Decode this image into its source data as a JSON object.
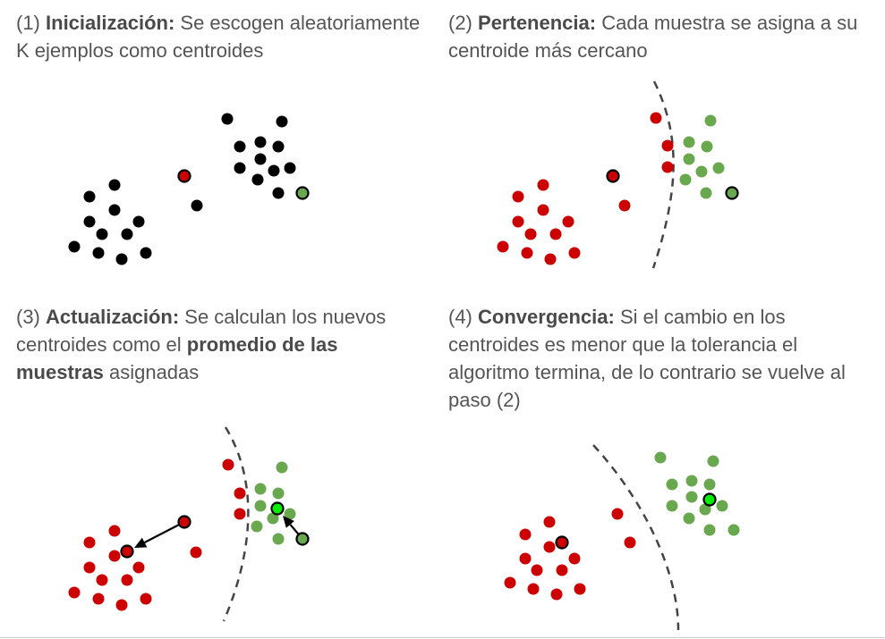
{
  "colors": {
    "black_point": "#000000",
    "red_point": "#cc0000",
    "green_point": "#6aa84f",
    "bright_green": "#00ee00",
    "text": "#555555",
    "boundary": "#444444"
  },
  "panels": [
    {
      "number": "(1)",
      "title": "Inicialización:",
      "text": "Se escogen aleatoriamente K ejemplos como centroides"
    },
    {
      "number": "(2)",
      "title": "Pertenencia:",
      "text": "Cada muestra se asigna a su centroide más cercano"
    },
    {
      "number": "(3)",
      "title": "Actualización:",
      "text_before": "Se calculan los nuevos centroides como el",
      "bold_phrase": "promedio de las muestras",
      "text_after": "asignadas"
    },
    {
      "number": "(4)",
      "title": "Convergencia:",
      "text": "Si el cambio en los centroides es menor que la tolerancia el algoritmo termina, de lo contrario se vuelve al paso (2)"
    }
  ]
}
